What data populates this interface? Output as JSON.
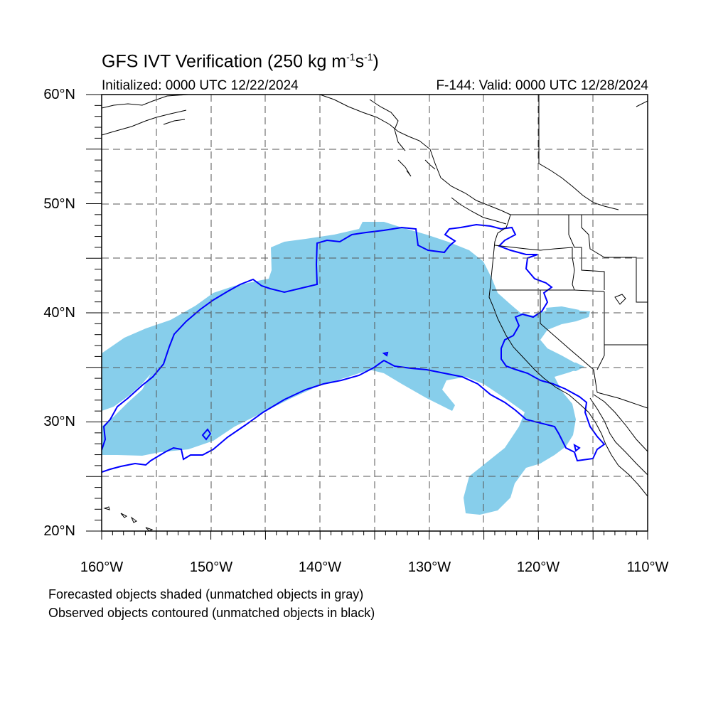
{
  "map": {
    "title_prefix": "GFS IVT Verification (250 kg m",
    "title_sup1": "-1",
    "title_mid": "s",
    "title_sup2": "-1",
    "title_suffix": ")",
    "initialized": "Initialized: 0000 UTC 12/22/2024",
    "valid": "F-144: Valid: 0000 UTC 12/28/2024",
    "lat_labels": [
      "60°N",
      "50°N",
      "40°N",
      "30°N",
      "20°N"
    ],
    "lon_labels": [
      "160°W",
      "150°W",
      "140°W",
      "130°W",
      "120°W",
      "110°W"
    ],
    "notes": [
      "Forecasted objects shaded (unmatched objects in gray)",
      "Observed objects contoured (unmatched objects in black)"
    ]
  },
  "colors": {
    "forecast_fill": "#87ceeb",
    "observed_contour": "#0000ff",
    "coastline": "#000000",
    "grid": "#555555"
  }
}
